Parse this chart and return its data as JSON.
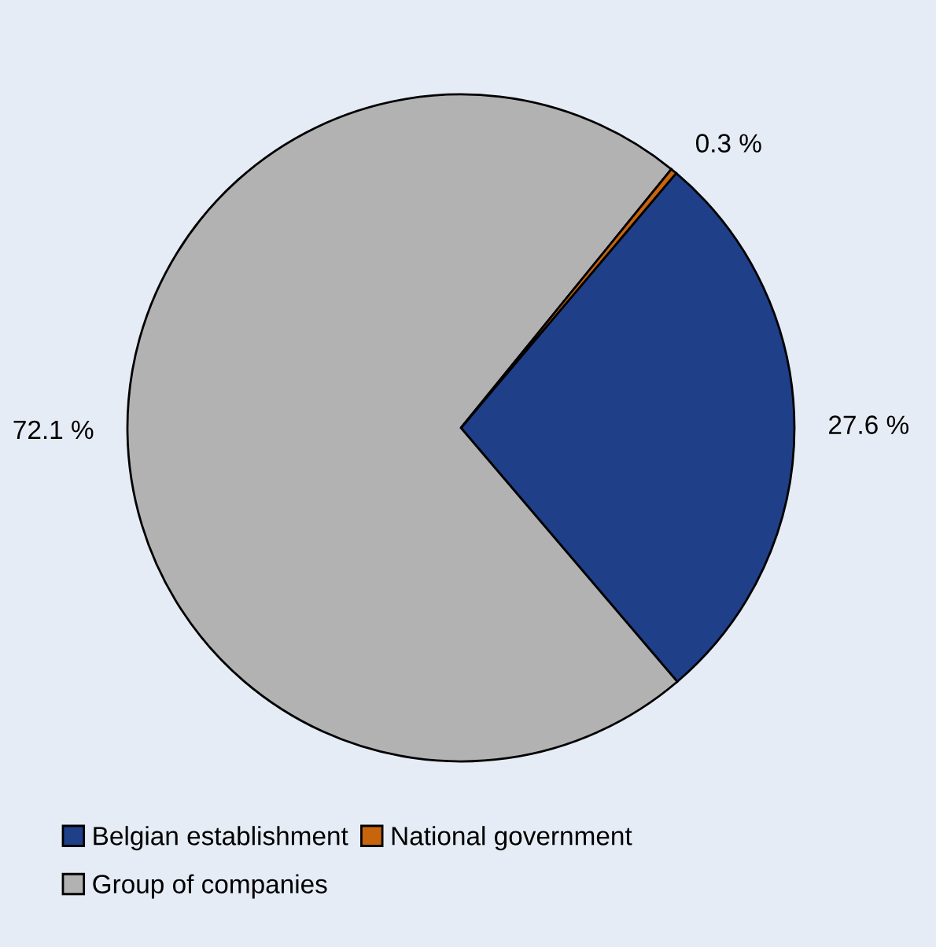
{
  "chart_data": {
    "type": "pie",
    "categories": [
      "Belgian establishment",
      "Group of companies",
      "National government"
    ],
    "values": [
      27.6,
      72.1,
      0.3
    ],
    "colors": [
      "#1f3f88",
      "#b2b2b2",
      "#c8650c"
    ],
    "value_labels": [
      "27.6 %",
      "72.1 %",
      "0.3 %"
    ],
    "legend": "bottom"
  }
}
